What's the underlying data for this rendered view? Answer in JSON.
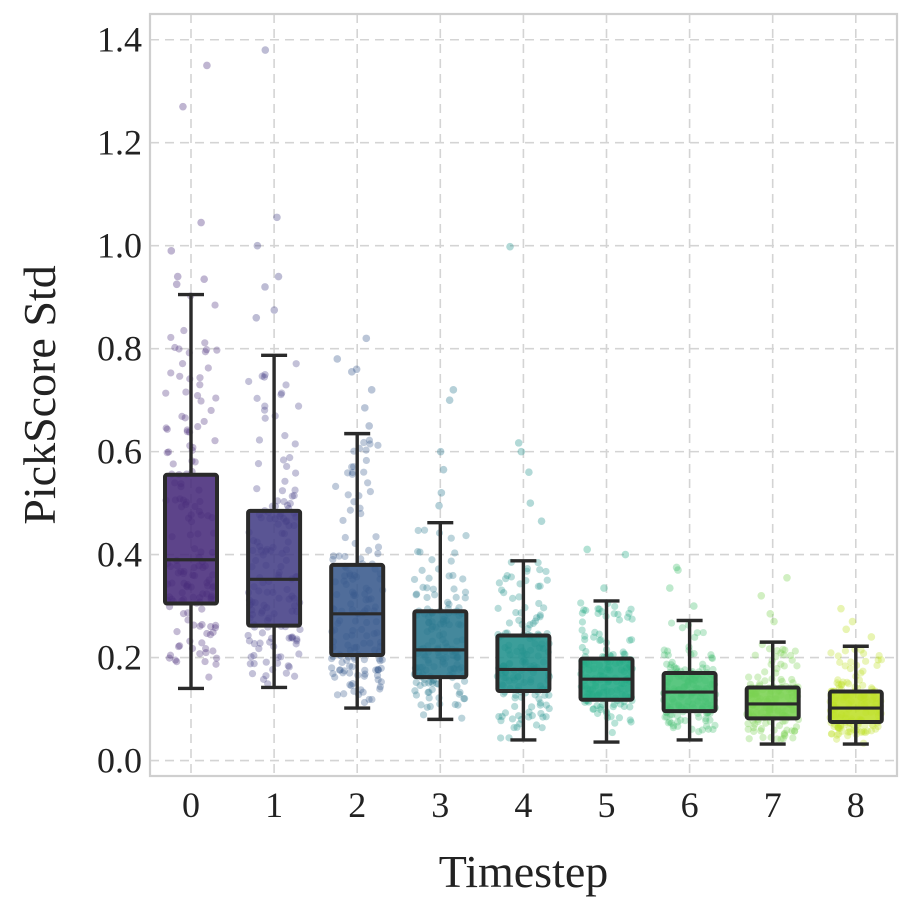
{
  "chart_data": {
    "type": "box",
    "xlabel": "Timestep",
    "ylabel": "PickScore Std",
    "ylim": [
      -0.03,
      1.45
    ],
    "yticks": [
      "0.0",
      "0.2",
      "0.4",
      "0.6",
      "0.8",
      "1.0",
      "1.2",
      "1.4"
    ],
    "categories": [
      "0",
      "1",
      "2",
      "3",
      "4",
      "5",
      "6",
      "7",
      "8"
    ],
    "grid": true,
    "colors": [
      "#472a7a",
      "#433e85",
      "#38598c",
      "#2a788e",
      "#21918c",
      "#22a884",
      "#44bf70",
      "#7ad151",
      "#bddf26"
    ],
    "boxes": [
      {
        "whislo": 0.14,
        "q1": 0.305,
        "median": 0.39,
        "q3": 0.555,
        "whishi": 0.905,
        "outliers": [
          0.925,
          0.935,
          0.94,
          0.99,
          1.045,
          1.27,
          1.35
        ]
      },
      {
        "whislo": 0.142,
        "q1": 0.262,
        "median": 0.352,
        "q3": 0.485,
        "whishi": 0.787,
        "outliers": [
          0.86,
          0.875,
          0.92,
          0.94,
          1.0,
          1.055,
          1.38
        ]
      },
      {
        "whislo": 0.102,
        "q1": 0.205,
        "median": 0.285,
        "q3": 0.38,
        "whishi": 0.635,
        "outliers": [
          0.65,
          0.685,
          0.72,
          0.755,
          0.76,
          0.78,
          0.82
        ]
      },
      {
        "whislo": 0.08,
        "q1": 0.162,
        "median": 0.215,
        "q3": 0.29,
        "whishi": 0.462,
        "outliers": [
          0.495,
          0.52,
          0.565,
          0.6,
          0.7,
          0.72
        ]
      },
      {
        "whislo": 0.04,
        "q1": 0.135,
        "median": 0.177,
        "q3": 0.243,
        "whishi": 0.388,
        "outliers": [
          0.465,
          0.5,
          0.56,
          0.6,
          0.617,
          0.998
        ]
      },
      {
        "whislo": 0.036,
        "q1": 0.118,
        "median": 0.158,
        "q3": 0.198,
        "whishi": 0.31,
        "outliers": [
          0.335,
          0.4,
          0.41
        ]
      },
      {
        "whislo": 0.04,
        "q1": 0.096,
        "median": 0.133,
        "q3": 0.17,
        "whishi": 0.272,
        "outliers": [
          0.3,
          0.335,
          0.37,
          0.375
        ]
      },
      {
        "whislo": 0.032,
        "q1": 0.082,
        "median": 0.11,
        "q3": 0.142,
        "whishi": 0.23,
        "outliers": [
          0.27,
          0.285,
          0.32,
          0.355
        ]
      },
      {
        "whislo": 0.032,
        "q1": 0.075,
        "median": 0.102,
        "q3": 0.134,
        "whishi": 0.222,
        "outliers": [
          0.24,
          0.255,
          0.27,
          0.295
        ]
      }
    ],
    "points_per_group": 150
  }
}
